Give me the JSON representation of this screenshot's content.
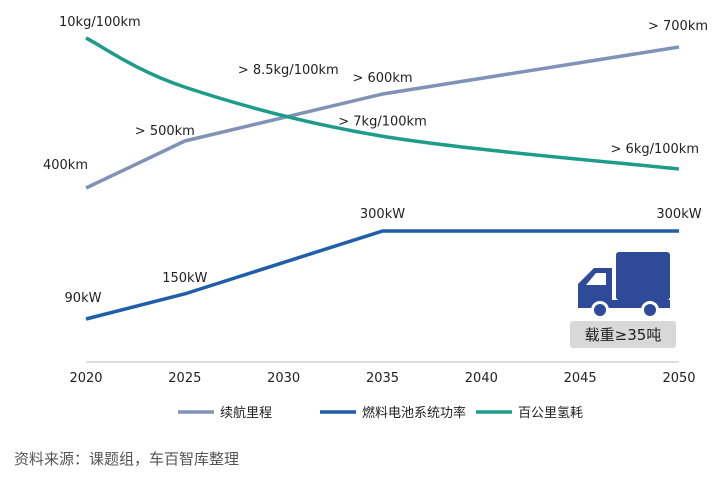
{
  "chart_data": {
    "type": "line",
    "x": [
      "2020",
      "2025",
      "2030",
      "2035",
      "2040",
      "2045",
      "2050"
    ],
    "series": [
      {
        "name": "续航里程",
        "color": "#7f93b7",
        "points": [
          {
            "x": 2020,
            "y": 400,
            "label": "400km",
            "anchor": "end"
          },
          {
            "x": 2025,
            "y": 500,
            "label": "> 500km",
            "anchor": "end"
          },
          {
            "x": 2035,
            "y": 600,
            "label": "> 600km",
            "anchor": "middle"
          },
          {
            "x": 2050,
            "y": 700,
            "label": "> 700km",
            "anchor": "middle"
          }
        ]
      },
      {
        "name": "燃料电池系统功率",
        "color": "#1f5ea8",
        "points": [
          {
            "x": 2020,
            "y": 90,
            "label": "90kW",
            "anchor": "middle"
          },
          {
            "x": 2025,
            "y": 150,
            "label": "150kW",
            "anchor": "middle"
          },
          {
            "x": 2035,
            "y": 300,
            "label": "300kW",
            "anchor": "middle"
          },
          {
            "x": 2050,
            "y": 300,
            "label": "300kW",
            "anchor": "middle"
          }
        ]
      },
      {
        "name": "百公里氢耗",
        "color": "#1e9c8a",
        "points": [
          {
            "x": 2020,
            "y": 10,
            "label": "10kg/100km",
            "anchor": "start"
          },
          {
            "x": 2025,
            "y": 8.5,
            "label": "> 8.5kg/100km",
            "anchor": "start"
          },
          {
            "x": 2035,
            "y": 7,
            "label": "> 7kg/100km",
            "anchor": "middle"
          },
          {
            "x": 2050,
            "y": 6,
            "label": "> 6kg/100km",
            "anchor": "end"
          }
        ]
      }
    ],
    "badge": {
      "text": "载重≥35吨",
      "icon": "truck-icon",
      "color": "#2e4a99"
    },
    "axis_color": "#bbbbbb",
    "text_color": "#222222",
    "legend_position": "bottom"
  },
  "source_note": "资料来源：课题组，车百智库整理"
}
